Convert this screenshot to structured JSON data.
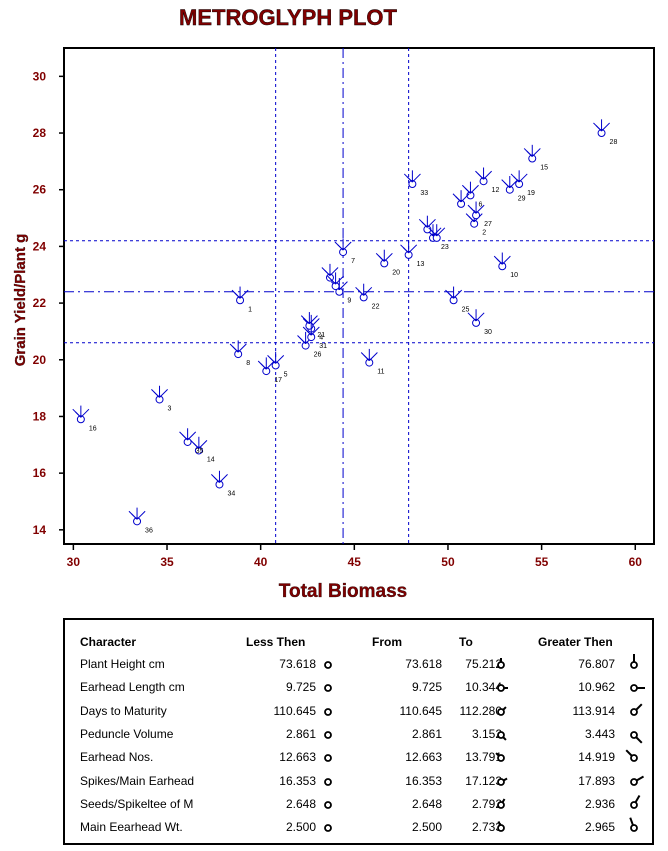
{
  "chart_data": {
    "type": "scatter",
    "title": "METROGLYPH PLOT",
    "xlabel": "Total Biomass",
    "ylabel": "Grain Yield/Plant g",
    "xlim": [
      29.5,
      61
    ],
    "ylim": [
      13.5,
      31
    ],
    "xticks": [
      30,
      35,
      40,
      45,
      50,
      55,
      60
    ],
    "yticks": [
      14,
      16,
      18,
      20,
      22,
      24,
      26,
      28,
      30
    ],
    "colors": {
      "title": "#800000",
      "axis_label": "#800000",
      "tick_label": "#800000",
      "points": "#0000cc",
      "ref_lines": "#0000cc"
    },
    "ref_lines": {
      "x_dashed": [
        40.8,
        47.9
      ],
      "x_dashdot": [
        44.4
      ],
      "y_dashed": [
        20.6,
        24.2
      ],
      "y_dashdot": [
        22.4
      ]
    },
    "points": [
      {
        "id": "1",
        "x": 38.9,
        "y": 22.1
      },
      {
        "id": "2",
        "x": 51.4,
        "y": 24.8
      },
      {
        "id": "3",
        "x": 34.6,
        "y": 18.6
      },
      {
        "id": "4",
        "x": 42.7,
        "y": 21.1
      },
      {
        "id": "5",
        "x": 40.8,
        "y": 19.8
      },
      {
        "id": "6",
        "x": 51.2,
        "y": 25.8
      },
      {
        "id": "7",
        "x": 44.4,
        "y": 23.8
      },
      {
        "id": "8",
        "x": 38.8,
        "y": 20.2
      },
      {
        "id": "9",
        "x": 44.2,
        "y": 22.4
      },
      {
        "id": "10",
        "x": 52.9,
        "y": 23.3
      },
      {
        "id": "11",
        "x": 45.8,
        "y": 19.9
      },
      {
        "id": "12",
        "x": 51.9,
        "y": 26.3
      },
      {
        "id": "13",
        "x": 47.9,
        "y": 23.7
      },
      {
        "id": "14",
        "x": 36.7,
        "y": 16.8
      },
      {
        "id": "15",
        "x": 54.5,
        "y": 27.1
      },
      {
        "id": "16",
        "x": 30.4,
        "y": 17.9
      },
      {
        "id": "17",
        "x": 40.3,
        "y": 19.6
      },
      {
        "id": "19",
        "x": 53.8,
        "y": 26.2
      },
      {
        "id": "20",
        "x": 46.6,
        "y": 23.4
      },
      {
        "id": "21",
        "x": 42.6,
        "y": 21.2
      },
      {
        "id": "22",
        "x": 45.5,
        "y": 22.2
      },
      {
        "id": "23",
        "x": 49.2,
        "y": 24.3
      },
      {
        "id": "25",
        "x": 50.3,
        "y": 22.1
      },
      {
        "id": "26",
        "x": 42.4,
        "y": 20.5
      },
      {
        "id": "27",
        "x": 51.5,
        "y": 25.1
      },
      {
        "id": "28",
        "x": 58.2,
        "y": 28.0
      },
      {
        "id": "29",
        "x": 53.3,
        "y": 26.0
      },
      {
        "id": "30",
        "x": 51.5,
        "y": 21.3
      },
      {
        "id": "31",
        "x": 42.7,
        "y": 20.8
      },
      {
        "id": "33",
        "x": 48.1,
        "y": 26.2
      },
      {
        "id": "34",
        "x": 37.8,
        "y": 15.6
      },
      {
        "id": "35",
        "x": 36.1,
        "y": 17.1
      },
      {
        "id": "36",
        "x": 33.4,
        "y": 14.3
      },
      {
        "id": "",
        "x": 43.7,
        "y": 22.9
      },
      {
        "id": "",
        "x": 44.0,
        "y": 22.6
      },
      {
        "id": "",
        "x": 48.9,
        "y": 24.6
      },
      {
        "id": "",
        "x": 49.4,
        "y": 24.3
      },
      {
        "id": "",
        "x": 50.7,
        "y": 25.5
      }
    ]
  },
  "legend": {
    "headers": {
      "character": "Character",
      "less": "Less Then",
      "from": "From",
      "to": "To",
      "greater": "Greater Then"
    },
    "rows": [
      {
        "character": "Plant Height cm",
        "less": "73.618",
        "from": "73.618",
        "to": "75.212",
        "greater": "76.807",
        "angle": 0
      },
      {
        "character": "Earhead Length cm",
        "less": "9.725",
        "from": "9.725",
        "to": "10.344",
        "greater": "10.962",
        "angle": 90
      },
      {
        "character": "Days to Maturity",
        "less": "110.645",
        "from": "110.645",
        "to": "112.280",
        "greater": "113.914",
        "angle": 45
      },
      {
        "character": "Peduncle Volume",
        "less": "2.861",
        "from": "2.861",
        "to": "3.152",
        "greater": "3.443",
        "angle": 135
      },
      {
        "character": "Earhead Nos.",
        "less": "12.663",
        "from": "12.663",
        "to": "13.791",
        "greater": "14.919",
        "angle": -45
      },
      {
        "character": "Spikes/Main Earhead",
        "less": "16.353",
        "from": "16.353",
        "to": "17.123",
        "greater": "17.893",
        "angle": 60
      },
      {
        "character": "Seeds/Spikeltee of M",
        "less": "2.648",
        "from": "2.648",
        "to": "2.792",
        "greater": "2.936",
        "angle": 30
      },
      {
        "character": "Main Eearhead Wt.",
        "less": "2.500",
        "from": "2.500",
        "to": "2.733",
        "greater": "2.965",
        "angle": -20
      }
    ]
  }
}
